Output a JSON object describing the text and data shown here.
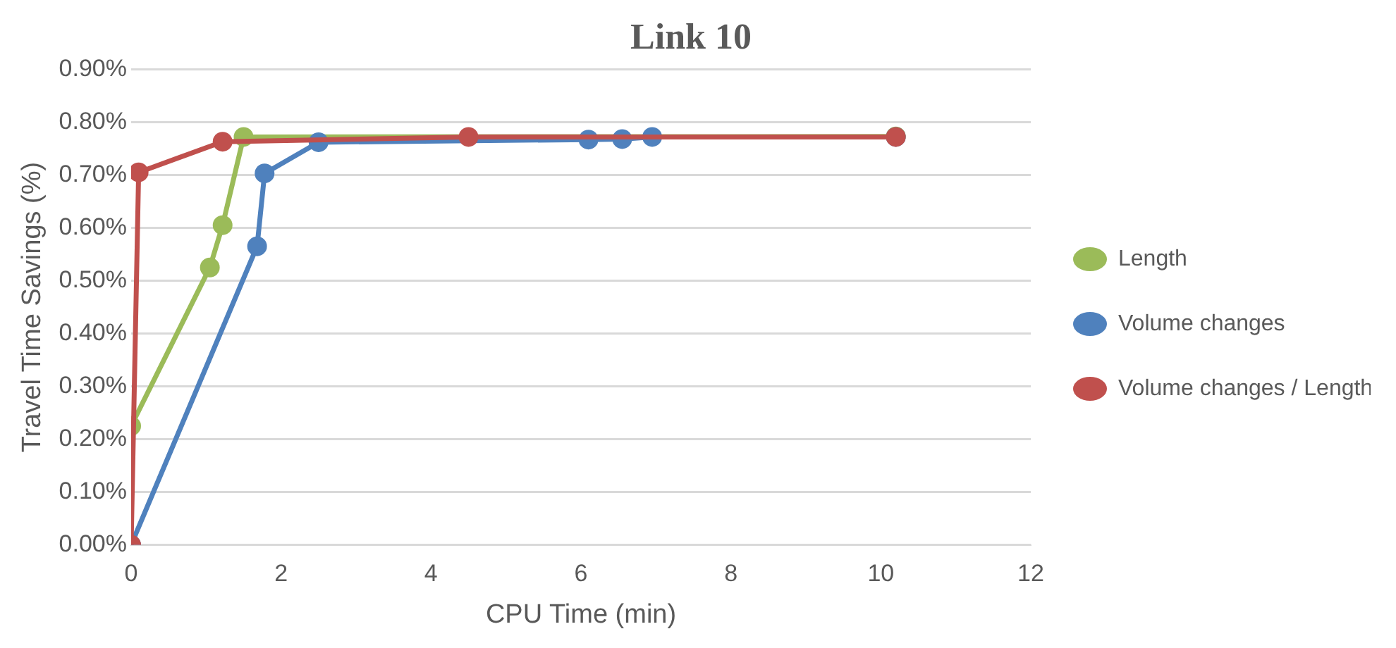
{
  "chart_data": {
    "type": "line",
    "title": "Link 10",
    "xlabel": "CPU Time (min)",
    "ylabel": "Travel Time Savings (%)",
    "xlim": [
      0,
      12
    ],
    "xticks": [
      0,
      2,
      4,
      6,
      8,
      10,
      12
    ],
    "ylim": [
      0,
      0.9
    ],
    "yticks": [
      {
        "value": 0,
        "label": "0.00%"
      },
      {
        "value": 0.1,
        "label": "0.10%"
      },
      {
        "value": 0.2,
        "label": "0.20%"
      },
      {
        "value": 0.3,
        "label": "0.30%"
      },
      {
        "value": 0.4,
        "label": "0.40%"
      },
      {
        "value": 0.5,
        "label": "0.50%"
      },
      {
        "value": 0.6,
        "label": "0.60%"
      },
      {
        "value": 0.7,
        "label": "0.70%"
      },
      {
        "value": 0.8,
        "label": "0.80%"
      },
      {
        "value": 0.9,
        "label": "0.90%"
      }
    ],
    "grid": "y",
    "legend": "right",
    "marker": "circle",
    "line_style": "solid",
    "series": [
      {
        "name": "Length",
        "color": "#9bbb59",
        "x": [
          0,
          1.05,
          1.22,
          1.5,
          10.2
        ],
        "values": [
          0.225,
          0.525,
          0.605,
          0.772,
          0.773
        ]
      },
      {
        "name": "Volume changes",
        "color": "#4f81bd",
        "x": [
          0,
          1.68,
          1.78,
          2.5,
          6.1,
          6.55,
          6.95,
          10.2
        ],
        "values": [
          0,
          0.565,
          0.703,
          0.762,
          0.767,
          0.768,
          0.772,
          0.772
        ]
      },
      {
        "name": "Volume changes / Length",
        "color": "#c0504d",
        "x": [
          0,
          0.1,
          1.22,
          4.5,
          10.2
        ],
        "values": [
          0,
          0.705,
          0.763,
          0.772,
          0.772
        ]
      }
    ]
  }
}
